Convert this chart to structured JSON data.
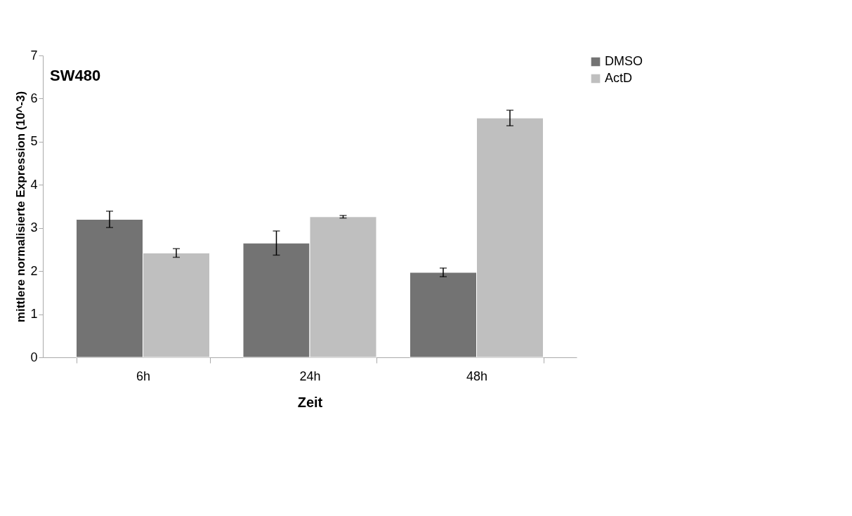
{
  "chart_data": {
    "type": "bar",
    "title": "SW480",
    "xlabel": "Zeit",
    "ylabel": "mittlere normalisierte Expression (10^-3)",
    "categories": [
      "6h",
      "24h",
      "48h"
    ],
    "series": [
      {
        "name": "DMSO",
        "color": "#737373",
        "values": [
          3.2,
          2.65,
          1.97
        ],
        "errors": [
          0.19,
          0.28,
          0.1
        ]
      },
      {
        "name": "ActD",
        "color": "#bfbfbf",
        "values": [
          2.42,
          3.26,
          5.55
        ],
        "errors": [
          0.1,
          0.03,
          0.18
        ]
      }
    ],
    "ylim": [
      0,
      7
    ],
    "yticks": [
      0,
      1,
      2,
      3,
      4,
      5,
      6,
      7
    ],
    "grid": false,
    "legend": "right"
  }
}
